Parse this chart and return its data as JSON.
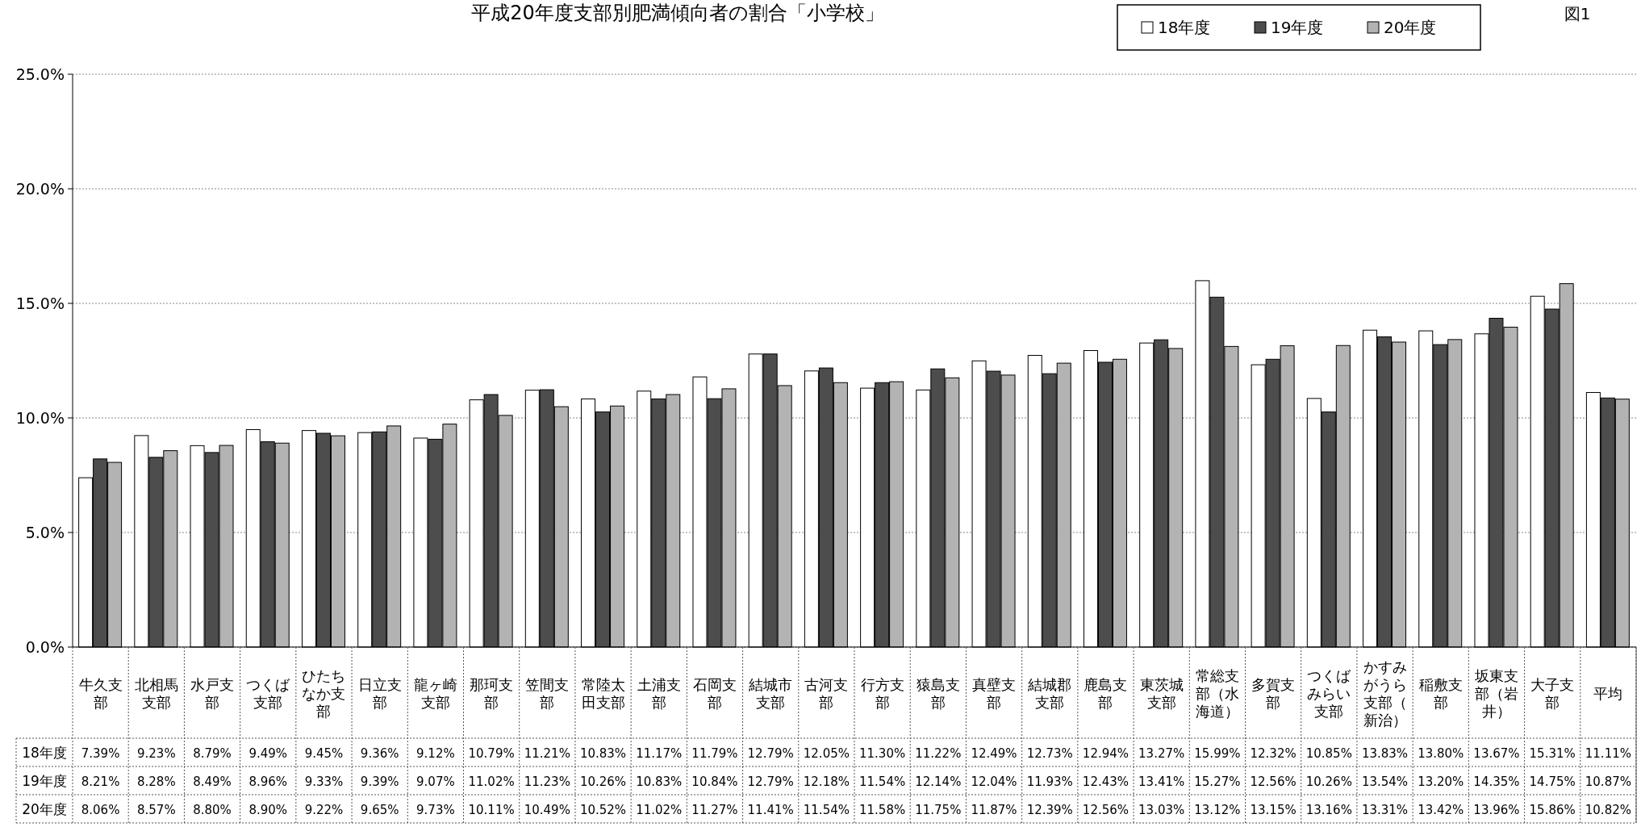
{
  "chart_data": {
    "type": "bar",
    "title": "平成20年度支部別肥満傾向者の割合「小学校」",
    "annotations": [
      "図1"
    ],
    "categories": [
      "牛久支部",
      "北相馬支部",
      "水戸支部",
      "つくば支部",
      "ひたちなか支部",
      "日立支部",
      "龍ヶ崎支部",
      "那珂支部",
      "笠間支部",
      "常陸太田支部",
      "土浦支部",
      "石岡支部",
      "結城市支部",
      "古河支部",
      "行方支部",
      "猿島支部",
      "真壁支部",
      "結城郡支部",
      "鹿島支部",
      "東茨城支部",
      "常総支部（水海道）",
      "多賀支部",
      "つくばみらい支部",
      "かすみがうら支部（新治）",
      "稲敷支部",
      "坂東支部（岩井）",
      "大子支部",
      "平均"
    ],
    "series": [
      {
        "name": "18年度",
        "color": "#ffffff",
        "values": [
          7.39,
          9.23,
          8.79,
          9.49,
          9.45,
          9.36,
          9.12,
          10.79,
          11.21,
          10.83,
          11.17,
          11.79,
          12.79,
          12.05,
          11.3,
          11.22,
          12.49,
          12.73,
          12.94,
          13.27,
          15.99,
          12.32,
          10.85,
          13.83,
          13.8,
          13.67,
          15.31,
          11.11
        ],
        "value_labels": [
          "7.39%",
          "9.23%",
          "8.79%",
          "9.49%",
          "9.45%",
          "9.36%",
          "9.12%",
          "10.79%",
          "11.21%",
          "10.83%",
          "11.17%",
          "11.79%",
          "12.79%",
          "12.05%",
          "11.30%",
          "11.22%",
          "12.49%",
          "12.73%",
          "12.94%",
          "13.27%",
          "15.99%",
          "12.32%",
          "10.85%",
          "13.83%",
          "13.80%",
          "13.67%",
          "15.31%",
          "11.11%"
        ]
      },
      {
        "name": "19年度",
        "color": "#4d4d4d",
        "values": [
          8.21,
          8.28,
          8.49,
          8.96,
          9.33,
          9.39,
          9.07,
          11.02,
          11.23,
          10.26,
          10.83,
          10.84,
          12.79,
          12.18,
          11.54,
          12.14,
          12.04,
          11.93,
          12.43,
          13.41,
          15.27,
          12.56,
          10.26,
          13.54,
          13.2,
          14.35,
          14.75,
          10.87
        ],
        "value_labels": [
          "8.21%",
          "8.28%",
          "8.49%",
          "8.96%",
          "9.33%",
          "9.39%",
          "9.07%",
          "11.02%",
          "11.23%",
          "10.26%",
          "10.83%",
          "10.84%",
          "12.79%",
          "12.18%",
          "11.54%",
          "12.14%",
          "12.04%",
          "11.93%",
          "12.43%",
          "13.41%",
          "15.27%",
          "12.56%",
          "10.26%",
          "13.54%",
          "13.20%",
          "14.35%",
          "14.75%",
          "10.87%"
        ]
      },
      {
        "name": "20年度",
        "color": "#b3b3b3",
        "values": [
          8.06,
          8.57,
          8.8,
          8.9,
          9.22,
          9.65,
          9.73,
          10.11,
          10.49,
          10.52,
          11.02,
          11.27,
          11.41,
          11.54,
          11.58,
          11.75,
          11.87,
          12.39,
          12.56,
          13.03,
          13.12,
          13.15,
          13.16,
          13.31,
          13.42,
          13.96,
          15.86,
          10.82
        ],
        "value_labels": [
          "8.06%",
          "8.57%",
          "8.80%",
          "8.90%",
          "9.22%",
          "9.65%",
          "9.73%",
          "10.11%",
          "10.49%",
          "10.52%",
          "11.02%",
          "11.27%",
          "11.41%",
          "11.54%",
          "11.58%",
          "11.75%",
          "11.87%",
          "12.39%",
          "12.56%",
          "13.03%",
          "13.12%",
          "13.15%",
          "13.16%",
          "13.31%",
          "13.42%",
          "13.96%",
          "15.86%",
          "10.82%"
        ]
      }
    ],
    "ylim": [
      0,
      25
    ],
    "yticks": [
      {
        "value": 0,
        "label": "0.0%"
      },
      {
        "value": 5,
        "label": "5.0%"
      },
      {
        "value": 10,
        "label": "10.0%"
      },
      {
        "value": 15,
        "label": "15.0%"
      },
      {
        "value": 20,
        "label": "20.0%"
      },
      {
        "value": 25,
        "label": "25.0%"
      }
    ],
    "grid": "y",
    "legend": "top right"
  }
}
